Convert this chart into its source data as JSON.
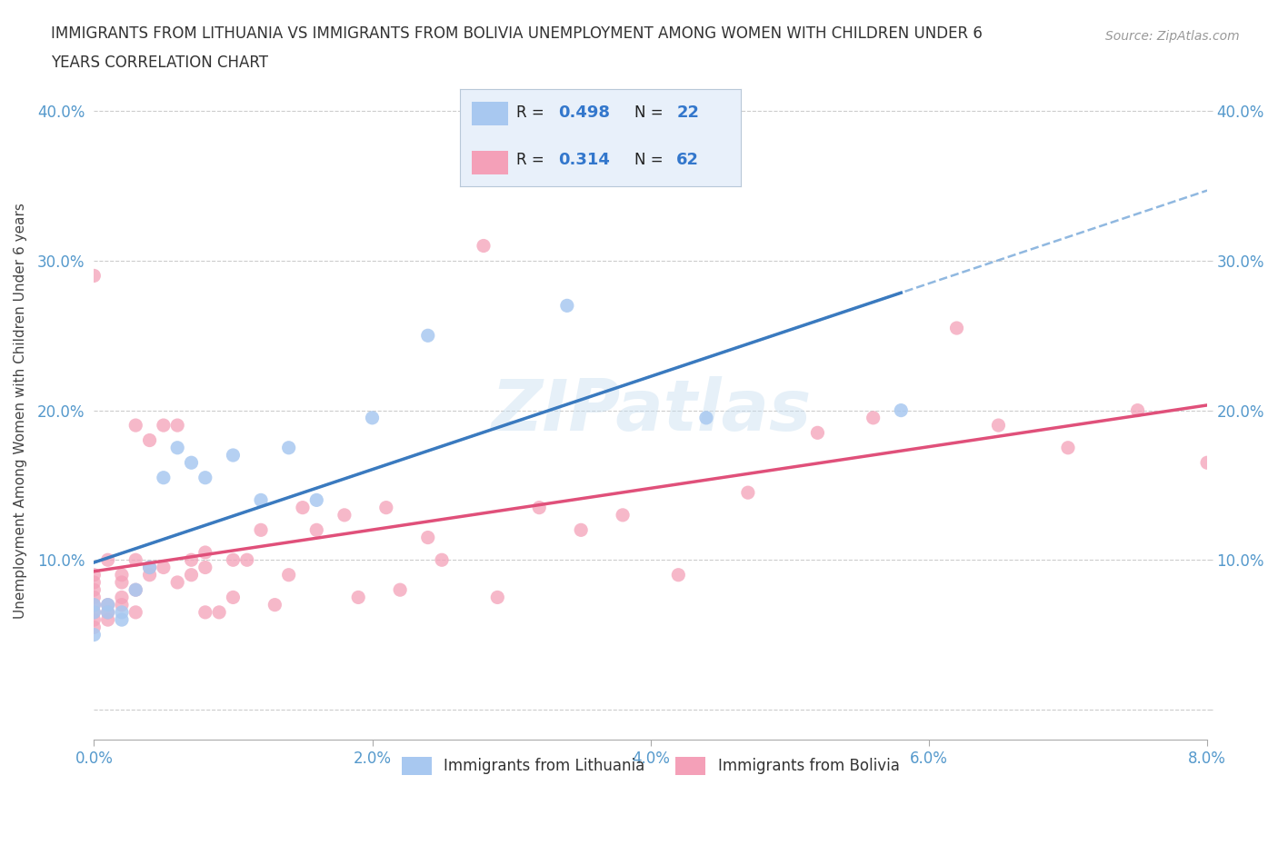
{
  "title_line1": "IMMIGRANTS FROM LITHUANIA VS IMMIGRANTS FROM BOLIVIA UNEMPLOYMENT AMONG WOMEN WITH CHILDREN UNDER 6",
  "title_line2": "YEARS CORRELATION CHART",
  "source": "Source: ZipAtlas.com",
  "ylabel": "Unemployment Among Women with Children Under 6 years",
  "legend_labels": [
    "Immigrants from Lithuania",
    "Immigrants from Bolivia"
  ],
  "r_n_blue": [
    "R = 0.498",
    "N = 22"
  ],
  "r_n_pink": [
    "R = 0.314",
    "N = 62"
  ],
  "watermark": "ZIPatlas",
  "xlim": [
    0.0,
    0.08
  ],
  "ylim": [
    -0.02,
    0.42
  ],
  "plot_ylim": [
    0.0,
    0.42
  ],
  "x_ticks": [
    0.0,
    0.02,
    0.04,
    0.06,
    0.08
  ],
  "x_tick_labels": [
    "0.0%",
    "2.0%",
    "4.0%",
    "6.0%",
    "8.0%"
  ],
  "y_ticks": [
    0.0,
    0.1,
    0.2,
    0.3,
    0.4
  ],
  "y_tick_labels": [
    "",
    "10.0%",
    "20.0%",
    "30.0%",
    "40.0%"
  ],
  "color_blue": "#a8c8f0",
  "color_pink": "#f4a0b8",
  "line_blue": "#3a7abf",
  "line_dashed": "#90b8e0",
  "line_pink": "#e0507a",
  "lithuania_x": [
    0.0,
    0.0,
    0.0,
    0.001,
    0.001,
    0.002,
    0.002,
    0.003,
    0.004,
    0.005,
    0.006,
    0.007,
    0.008,
    0.01,
    0.012,
    0.014,
    0.016,
    0.02,
    0.024,
    0.034,
    0.044,
    0.058
  ],
  "lithuania_y": [
    0.05,
    0.065,
    0.07,
    0.07,
    0.065,
    0.065,
    0.06,
    0.08,
    0.095,
    0.155,
    0.175,
    0.165,
    0.155,
    0.17,
    0.14,
    0.175,
    0.14,
    0.195,
    0.25,
    0.27,
    0.195,
    0.2
  ],
  "bolivia_x": [
    0.0,
    0.0,
    0.0,
    0.0,
    0.0,
    0.0,
    0.0,
    0.0,
    0.0,
    0.001,
    0.001,
    0.001,
    0.001,
    0.002,
    0.002,
    0.002,
    0.002,
    0.003,
    0.003,
    0.003,
    0.003,
    0.004,
    0.004,
    0.004,
    0.005,
    0.005,
    0.006,
    0.006,
    0.007,
    0.007,
    0.008,
    0.008,
    0.008,
    0.009,
    0.01,
    0.01,
    0.011,
    0.012,
    0.013,
    0.014,
    0.015,
    0.016,
    0.018,
    0.019,
    0.021,
    0.022,
    0.024,
    0.025,
    0.028,
    0.029,
    0.032,
    0.035,
    0.038,
    0.042,
    0.047,
    0.052,
    0.056,
    0.062,
    0.065,
    0.07,
    0.075,
    0.08
  ],
  "bolivia_y": [
    0.055,
    0.06,
    0.065,
    0.07,
    0.075,
    0.08,
    0.085,
    0.09,
    0.29,
    0.06,
    0.065,
    0.07,
    0.1,
    0.07,
    0.075,
    0.085,
    0.09,
    0.065,
    0.08,
    0.1,
    0.19,
    0.09,
    0.095,
    0.18,
    0.095,
    0.19,
    0.085,
    0.19,
    0.09,
    0.1,
    0.065,
    0.095,
    0.105,
    0.065,
    0.075,
    0.1,
    0.1,
    0.12,
    0.07,
    0.09,
    0.135,
    0.12,
    0.13,
    0.075,
    0.135,
    0.08,
    0.115,
    0.1,
    0.31,
    0.075,
    0.135,
    0.12,
    0.13,
    0.09,
    0.145,
    0.185,
    0.195,
    0.255,
    0.19,
    0.175,
    0.2,
    0.165
  ]
}
